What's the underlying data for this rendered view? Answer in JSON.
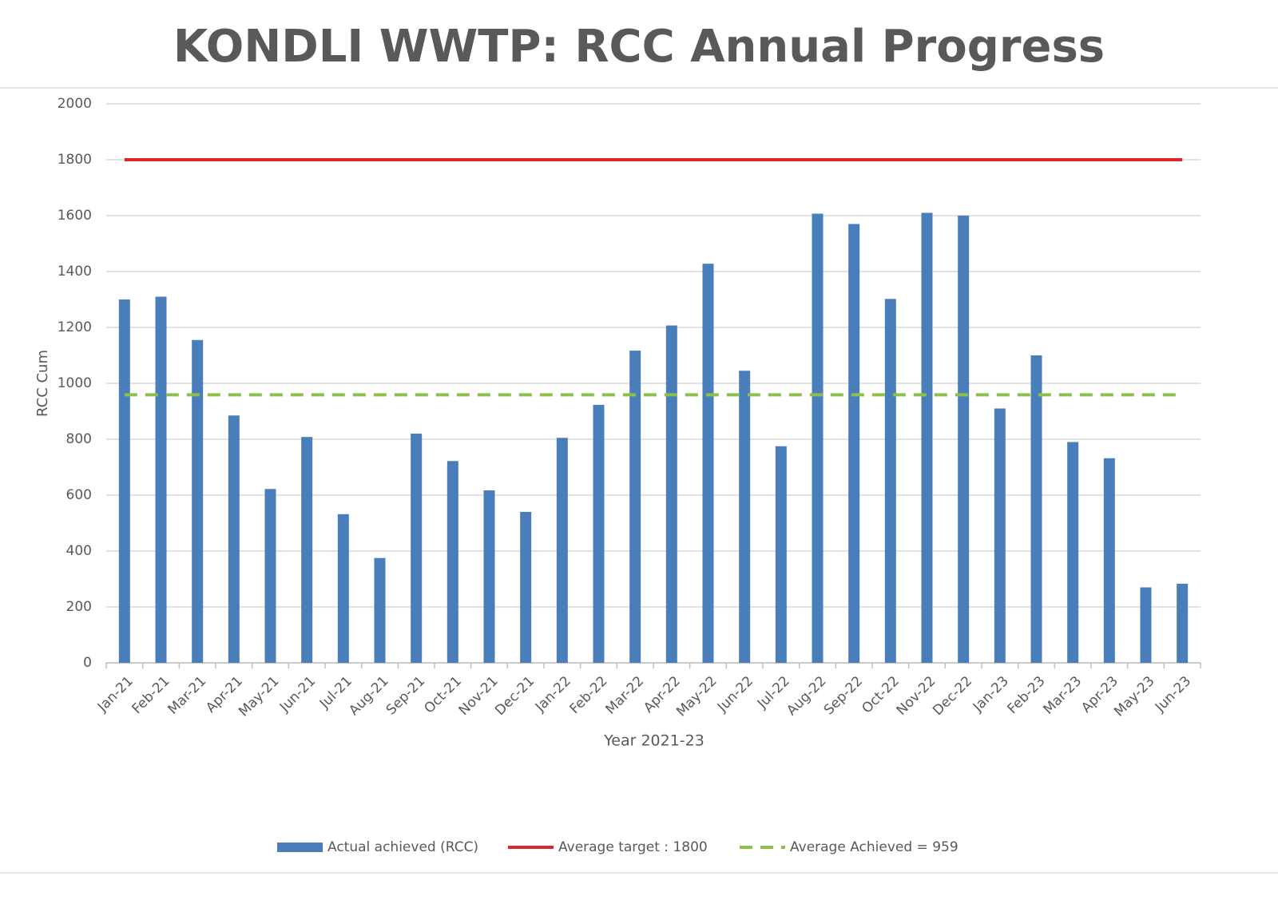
{
  "chart_data": {
    "type": "bar",
    "title": "KONDLI WWTP: RCC Annual Progress",
    "x_label": "Year 2021-23",
    "y_label": "RCC  Cum",
    "categories": [
      "Jan-21",
      "Feb-21",
      "Mar-21",
      "Apr-21",
      "May-21",
      "Jun-21",
      "Jul-21",
      "Aug-21",
      "Sep-21",
      "Oct-21",
      "Nov-21",
      "Dec-21",
      "Jan-22",
      "Feb-22",
      "Mar-22",
      "Apr-22",
      "May-22",
      "Jun-22",
      "Jul-22",
      "Aug-22",
      "Sep-22",
      "Oct-22",
      "Nov-22",
      "Dec-22",
      "Jan-23",
      "Feb-23",
      "Mar-23",
      "Apr-23",
      "May-23",
      "Jun-23"
    ],
    "series": [
      {
        "name": "Actual achieved (RCC)",
        "type": "bar",
        "color": "#4a7ebb",
        "values": [
          1300,
          1310,
          1155,
          885,
          622,
          808,
          532,
          375,
          820,
          722,
          617,
          540,
          805,
          923,
          1117,
          1207,
          1428,
          1045,
          775,
          1607,
          1570,
          1302,
          1610,
          1600,
          910,
          1100,
          790,
          732,
          270,
          283
        ]
      },
      {
        "name": "Average target : 1800",
        "type": "line",
        "color": "#e0242b",
        "dashed": false,
        "values": [
          1800,
          1800,
          1800,
          1800,
          1800,
          1800,
          1800,
          1800,
          1800,
          1800,
          1800,
          1800,
          1800,
          1800,
          1800,
          1800,
          1800,
          1800,
          1800,
          1800,
          1800,
          1800,
          1800,
          1800,
          1800,
          1800,
          1800,
          1800,
          1800,
          1800
        ]
      },
      {
        "name": "Average Achieved = 959",
        "type": "line",
        "color": "#8dbf4c",
        "dashed": true,
        "values": [
          959,
          959,
          959,
          959,
          959,
          959,
          959,
          959,
          959,
          959,
          959,
          959,
          959,
          959,
          959,
          959,
          959,
          959,
          959,
          959,
          959,
          959,
          959,
          959,
          959,
          959,
          959,
          959,
          959,
          959
        ]
      }
    ],
    "ylim": [
      0,
      2000
    ],
    "yticks": [
      0,
      200,
      400,
      600,
      800,
      1000,
      1200,
      1400,
      1600,
      1800,
      2000
    ],
    "grid": true,
    "legend": "bottom"
  }
}
